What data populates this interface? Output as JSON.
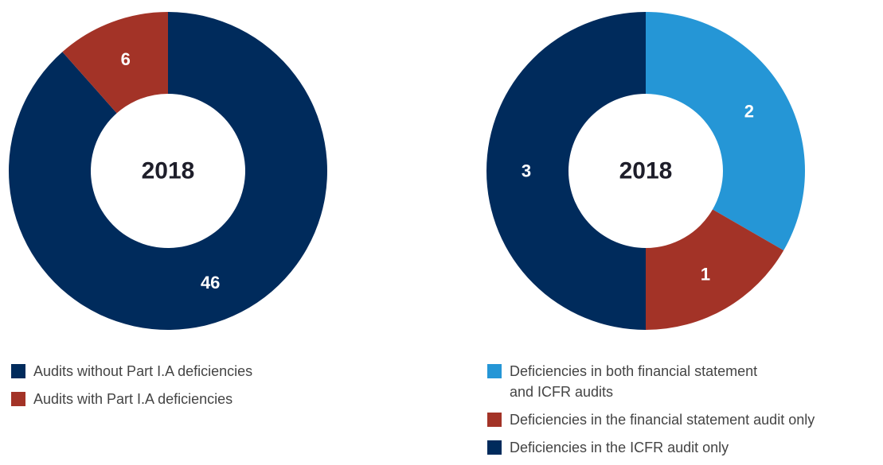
{
  "chart_data": [
    {
      "type": "pie",
      "center_label": "2018",
      "categories": [
        "Audits without Part I.A deficiencies",
        "Audits with Part I.A deficiencies"
      ],
      "values": [
        46,
        6
      ],
      "colors": [
        "#002b5c",
        "#a33327"
      ]
    },
    {
      "type": "pie",
      "center_label": "2018",
      "categories": [
        "Deficiencies in both financial statement\nand ICFR audits",
        "Deficiencies in the financial statement audit only",
        "Deficiencies in the ICFR audit only"
      ],
      "values": [
        2,
        1,
        3
      ],
      "colors": [
        "#2596d6",
        "#a33327",
        "#002b5c"
      ]
    }
  ]
}
